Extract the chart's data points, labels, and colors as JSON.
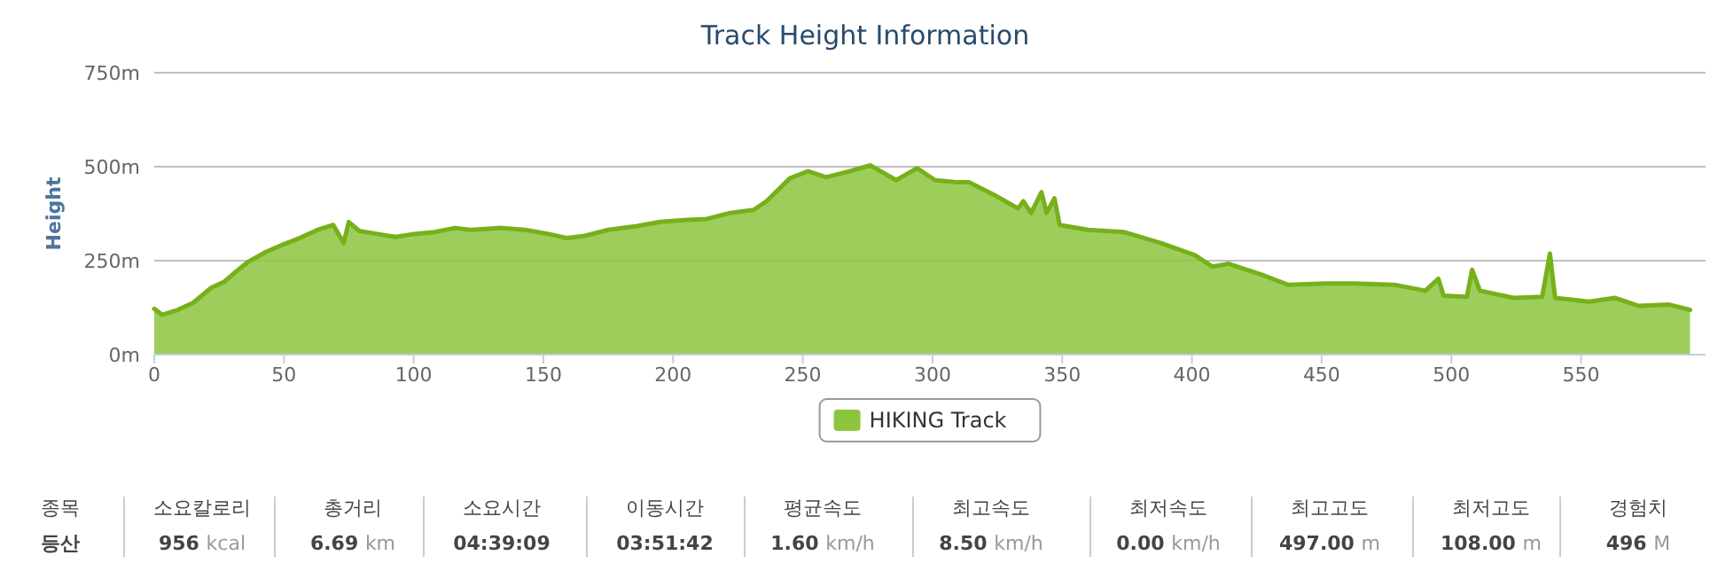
{
  "chart_data": {
    "type": "area",
    "title": "Track Height Information",
    "ylabel": "Height",
    "x": [
      0,
      3,
      9,
      15,
      22,
      27,
      31,
      36,
      43,
      50,
      56,
      63,
      69,
      73,
      75,
      79,
      86,
      93,
      100,
      108,
      116,
      122,
      134,
      143,
      152,
      159,
      166,
      175,
      186,
      195,
      204,
      213,
      222,
      231,
      236,
      245,
      252,
      259,
      268,
      276,
      286,
      294,
      301,
      309,
      314,
      324,
      333,
      335,
      338,
      342,
      344,
      347,
      349,
      360,
      374,
      388,
      401,
      408,
      414,
      428,
      437,
      451,
      463,
      478,
      490,
      495,
      497,
      506,
      508,
      511,
      524,
      535,
      538,
      540,
      553,
      563,
      572,
      584,
      592
    ],
    "series": [
      {
        "name": "HIKING Track",
        "color": "#8cc63f",
        "values": [
          122,
          106,
          119,
          138,
          178,
          194,
          218,
          246,
          273,
          294,
          310,
          332,
          345,
          297,
          353,
          329,
          321,
          313,
          321,
          326,
          337,
          332,
          337,
          332,
          321,
          310,
          316,
          332,
          342,
          353,
          358,
          361,
          377,
          385,
          408,
          469,
          488,
          472,
          488,
          504,
          464,
          496,
          464,
          459,
          459,
          424,
          389,
          408,
          377,
          432,
          377,
          416,
          345,
          332,
          326,
          297,
          265,
          234,
          242,
          210,
          186,
          189,
          189,
          186,
          170,
          202,
          157,
          154,
          226,
          170,
          151,
          154,
          269,
          151,
          141,
          151,
          130,
          133,
          119
        ]
      }
    ],
    "xlim": [
      0,
      598
    ],
    "xticks": [
      0,
      50,
      100,
      150,
      200,
      250,
      300,
      350,
      400,
      450,
      500,
      550
    ],
    "ylim": [
      0,
      750
    ],
    "yticks": [
      {
        "value": 0,
        "label": "0m"
      },
      {
        "value": 250,
        "label": "250m"
      },
      {
        "value": 500,
        "label": "500m"
      },
      {
        "value": 750,
        "label": "750m"
      }
    ],
    "grid": "y",
    "legend": "bottom",
    "annotations": [
      "종목",
      "등산",
      "소요칼로리",
      "956 kcal",
      "총거리",
      "6.69 km",
      "소요시간",
      "04:39:09",
      "이동시간",
      "03:51:42",
      "평균속도",
      "1.60 km/h",
      "최고속도",
      "8.50 km/h",
      "최저속도",
      "0.00 km/h",
      "최고고도",
      "497.00 m",
      "최저고도",
      "108.00 m",
      "경험치",
      "496 M"
    ]
  }
}
